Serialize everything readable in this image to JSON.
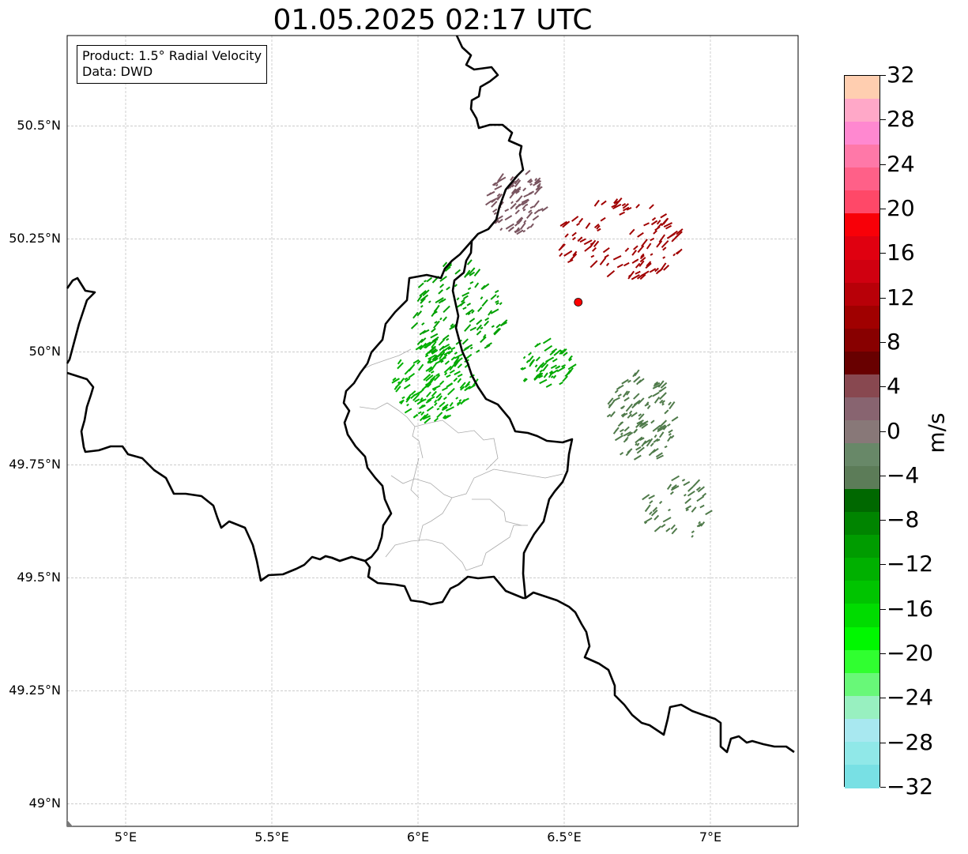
{
  "title": "01.05.2025 02:17 UTC",
  "infobox": {
    "product": "Product: 1.5° Radial Velocity",
    "data": "Data: DWD"
  },
  "axes": {
    "lat_labels": [
      "50.5°N",
      "50.25°N",
      "50°N",
      "49.75°N",
      "49.5°N",
      "49.25°N",
      "49°N"
    ],
    "lat_values": [
      50.5,
      50.25,
      50.0,
      49.75,
      49.5,
      49.25,
      49.0
    ],
    "lon_labels": [
      "5°E",
      "5.5°E",
      "6°E",
      "6.5°E",
      "7°E"
    ],
    "lon_values": [
      5.0,
      5.5,
      6.0,
      6.5,
      7.0
    ],
    "lon_range": [
      4.8,
      7.3
    ],
    "lat_range": [
      48.95,
      50.7
    ]
  },
  "radar_site": {
    "lon": 6.548,
    "lat": 50.11,
    "color": "#ff0000"
  },
  "colorbar": {
    "unit": "m/s",
    "min": -32,
    "max": 32,
    "tick_labels": [
      "32",
      "28",
      "24",
      "20",
      "16",
      "12",
      "8",
      "4",
      "0",
      "−4",
      "−8",
      "−12",
      "−16",
      "−20",
      "−24",
      "−28",
      "−32"
    ],
    "tick_values": [
      32,
      28,
      24,
      20,
      16,
      12,
      8,
      4,
      0,
      -4,
      -8,
      -12,
      -16,
      -20,
      -24,
      -28,
      -32
    ],
    "colors_top_to_bottom": [
      "#ffceb0",
      "#ffa8c8",
      "#ff88d0",
      "#ff78a8",
      "#ff6088",
      "#ff4868",
      "#f80008",
      "#e00010",
      "#d00010",
      "#b80008",
      "#a00000",
      "#880000",
      "#680000",
      "#884850",
      "#886470",
      "#887878",
      "#688868",
      "#5c7c58",
      "#006800",
      "#008400",
      "#009c00",
      "#00b000",
      "#00c400",
      "#00dc00",
      "#00f800",
      "#30ff30",
      "#68f878",
      "#98f0c0",
      "#a8e8f0",
      "#90e8e8",
      "#78e0e4"
    ]
  },
  "map_colors": {
    "border": "#000000",
    "admin": "#aaaaaa",
    "grid": "#bbbbbb",
    "approaching": "#00a800",
    "receding": "#b00000"
  },
  "echo_regions": [
    {
      "name": "approaching-strong",
      "lon": 6.05,
      "lat": 49.93,
      "rx": 0.14,
      "ry": 0.09,
      "n": 160,
      "color": "#00b000"
    },
    {
      "name": "approaching-west",
      "lon": 6.13,
      "lat": 50.08,
      "rx": 0.16,
      "ry": 0.12,
      "n": 120,
      "color": "#00a000"
    },
    {
      "name": "approaching-central",
      "lon": 6.43,
      "lat": 49.97,
      "rx": 0.1,
      "ry": 0.05,
      "n": 60,
      "color": "#00a800"
    },
    {
      "name": "approaching-weak-se",
      "lon": 6.76,
      "lat": 49.85,
      "rx": 0.12,
      "ry": 0.1,
      "n": 110,
      "color": "#4f7a4a"
    },
    {
      "name": "approaching-weak-far-se",
      "lon": 6.88,
      "lat": 49.65,
      "rx": 0.12,
      "ry": 0.07,
      "n": 45,
      "color": "#4f7a4a"
    },
    {
      "name": "receding-weak-north",
      "lon": 6.33,
      "lat": 50.33,
      "rx": 0.1,
      "ry": 0.07,
      "n": 90,
      "color": "#7a5560"
    },
    {
      "name": "receding-ne",
      "lon": 6.68,
      "lat": 50.24,
      "rx": 0.22,
      "ry": 0.09,
      "n": 110,
      "color": "#a00000"
    }
  ]
}
